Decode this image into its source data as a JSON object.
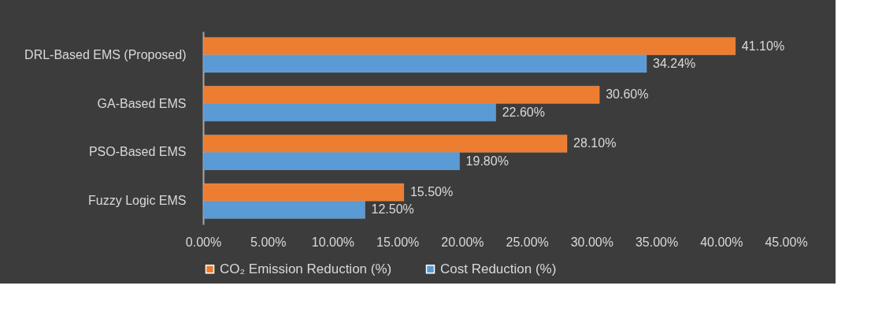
{
  "chart_data": {
    "type": "bar",
    "orientation": "horizontal",
    "categories": [
      "DRL-Based EMS (Proposed)",
      "GA-Based EMS",
      "PSO-Based EMS",
      "Fuzzy Logic EMS"
    ],
    "series": [
      {
        "name": "CO₂ Emission Reduction (%)",
        "color": "#ed7d31",
        "values": [
          41.1,
          30.6,
          28.1,
          15.5
        ],
        "value_labels": [
          "41.10%",
          "30.60%",
          "28.10%",
          "15.50%"
        ]
      },
      {
        "name": "Cost Reduction (%)",
        "color": "#5b9bd5",
        "values": [
          34.24,
          22.6,
          19.8,
          12.5
        ],
        "value_labels": [
          "34.24%",
          "22.60%",
          "19.80%",
          "12.50%"
        ]
      }
    ],
    "xlim": [
      0,
      45
    ],
    "xticks": [
      {
        "value": 0,
        "label": "0.00%"
      },
      {
        "value": 5,
        "label": "5.00%"
      },
      {
        "value": 10,
        "label": "10.00%"
      },
      {
        "value": 15,
        "label": "15.00%"
      },
      {
        "value": 20,
        "label": "20.00%"
      },
      {
        "value": 25,
        "label": "25.00%"
      },
      {
        "value": 30,
        "label": "30.00%"
      },
      {
        "value": 35,
        "label": "35.00%"
      },
      {
        "value": 40,
        "label": "40.00%"
      },
      {
        "value": 45,
        "label": "45.00%"
      }
    ],
    "grid": false,
    "legend": "bottom"
  }
}
